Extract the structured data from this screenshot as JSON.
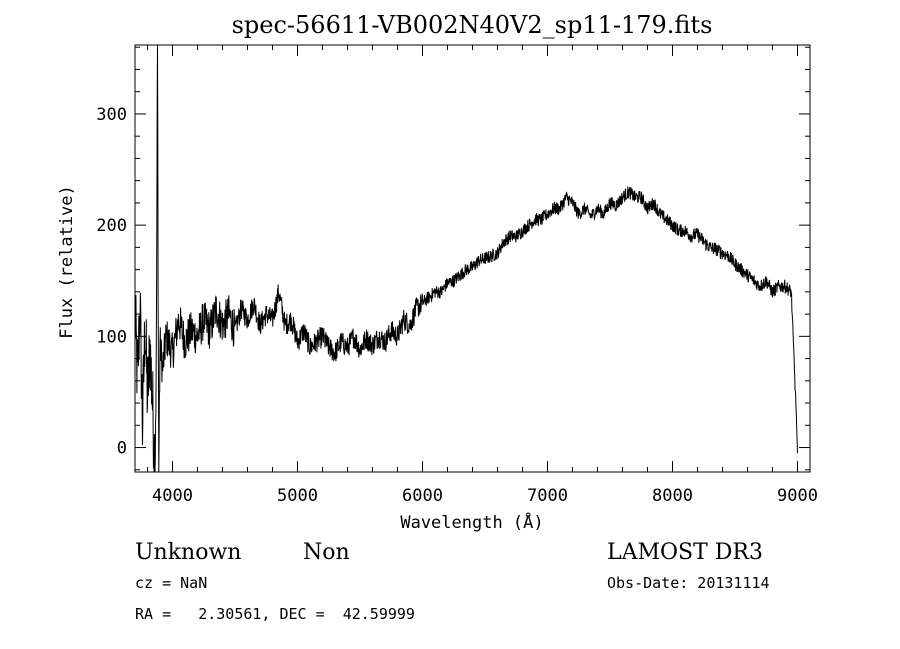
{
  "chart_data": {
    "type": "line",
    "title": "spec-56611-VB002N40V2_sp11-179.fits",
    "xlabel": "Wavelength (Å)",
    "ylabel": "Flux (relative)",
    "xlim": [
      3700,
      9100
    ],
    "ylim": [
      -22,
      362
    ],
    "x_ticks": [
      4000,
      5000,
      6000,
      7000,
      8000,
      9000
    ],
    "y_ticks": [
      0,
      100,
      200,
      300
    ],
    "grid": false,
    "series": [
      {
        "x": [
          3700,
          3720,
          3740,
          3760,
          3780,
          3800,
          3820,
          3840,
          3860,
          3870,
          3880,
          3890,
          3900,
          3920,
          3950,
          4000,
          4050,
          4100,
          4150,
          4200,
          4250,
          4300,
          4350,
          4400,
          4450,
          4500,
          4550,
          4600,
          4650,
          4700,
          4750,
          4800,
          4850,
          4900,
          4950,
          5000,
          5050,
          5100,
          5150,
          5200,
          5250,
          5300,
          5350,
          5400,
          5450,
          5500,
          5550,
          5600,
          5650,
          5700,
          5750,
          5800,
          5850,
          5900,
          5950,
          6000,
          6050,
          6100,
          6150,
          6200,
          6250,
          6300,
          6350,
          6400,
          6450,
          6500,
          6550,
          6600,
          6650,
          6700,
          6750,
          6800,
          6850,
          6900,
          6950,
          7000,
          7050,
          7100,
          7150,
          7200,
          7250,
          7300,
          7350,
          7400,
          7450,
          7500,
          7550,
          7600,
          7650,
          7700,
          7750,
          7800,
          7850,
          7900,
          7950,
          8000,
          8050,
          8100,
          8150,
          8200,
          8250,
          8300,
          8350,
          8400,
          8450,
          8500,
          8550,
          8600,
          8650,
          8700,
          8750,
          8800,
          8850,
          8900,
          8950,
          8990,
          9000
        ],
        "y": [
          120,
          60,
          130,
          20,
          110,
          45,
          90,
          40,
          -15,
          75,
          360,
          -20,
          95,
          70,
          100,
          85,
          115,
          95,
          105,
          100,
          115,
          105,
          125,
          110,
          120,
          105,
          125,
          115,
          130,
          110,
          120,
          115,
          140,
          110,
          115,
          95,
          105,
          90,
          95,
          100,
          90,
          85,
          95,
          90,
          100,
          88,
          98,
          92,
          100,
          95,
          105,
          100,
          115,
          110,
          125,
          130,
          135,
          140,
          140,
          148,
          150,
          155,
          160,
          162,
          168,
          170,
          172,
          175,
          185,
          190,
          190,
          195,
          200,
          205,
          205,
          210,
          215,
          215,
          225,
          220,
          210,
          215,
          208,
          215,
          210,
          220,
          218,
          225,
          230,
          225,
          225,
          215,
          220,
          210,
          205,
          200,
          195,
          195,
          190,
          192,
          185,
          180,
          178,
          175,
          172,
          165,
          160,
          155,
          150,
          145,
          150,
          140,
          145,
          145,
          140,
          30,
          -5
        ]
      }
    ]
  },
  "footer": {
    "class_label": "Unknown",
    "subclass_label": "Non",
    "cz": "cz = NaN",
    "coords": "RA =   2.30561, DEC =  42.59999",
    "survey": "LAMOST DR3",
    "obs_date": "Obs-Date: 20131114"
  }
}
